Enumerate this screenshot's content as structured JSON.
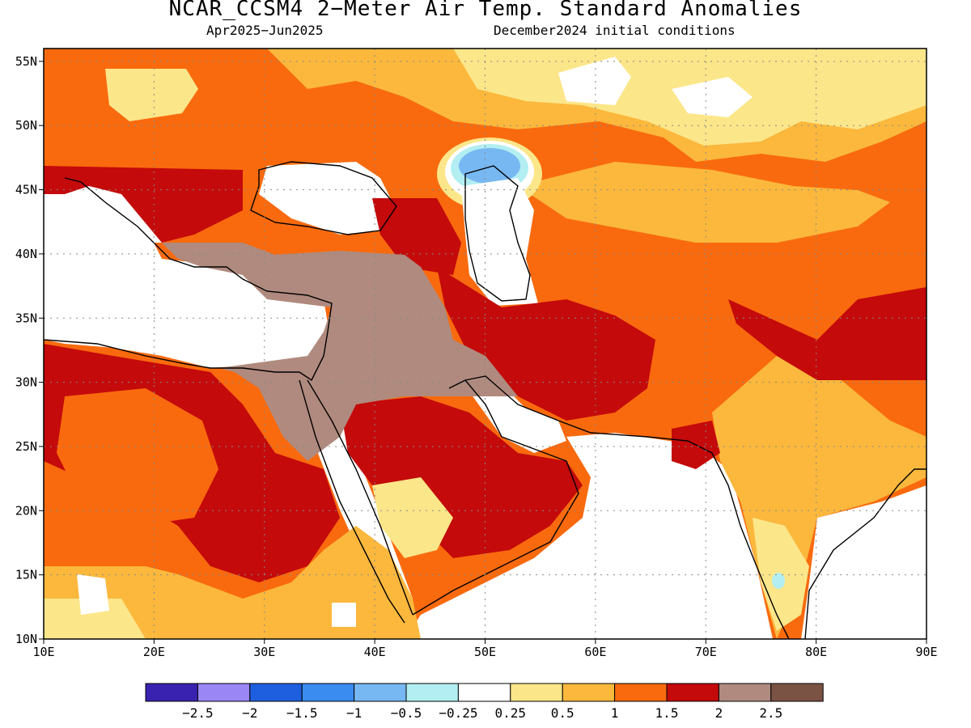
{
  "title": "NCAR_CCSM4 2−Meter Air Temp. Standard Anomalies",
  "subtitle_left": "Apr2025−Jun2025",
  "subtitle_right": "December2024 initial conditions",
  "map": {
    "lon_range": [
      10,
      90
    ],
    "lat_range": [
      10,
      56
    ],
    "x_ticks": [
      {
        "value": 10,
        "label": "10E"
      },
      {
        "value": 20,
        "label": "20E"
      },
      {
        "value": 30,
        "label": "30E"
      },
      {
        "value": 40,
        "label": "40E"
      },
      {
        "value": 50,
        "label": "50E"
      },
      {
        "value": 60,
        "label": "60E"
      },
      {
        "value": 70,
        "label": "70E"
      },
      {
        "value": 80,
        "label": "80E"
      },
      {
        "value": 90,
        "label": "90E"
      }
    ],
    "y_ticks": [
      {
        "value": 10,
        "label": "10N"
      },
      {
        "value": 15,
        "label": "15N"
      },
      {
        "value": 20,
        "label": "20N"
      },
      {
        "value": 25,
        "label": "25N"
      },
      {
        "value": 30,
        "label": "30N"
      },
      {
        "value": 35,
        "label": "35N"
      },
      {
        "value": 40,
        "label": "40N"
      },
      {
        "value": 45,
        "label": "45N"
      },
      {
        "value": 50,
        "label": "50N"
      },
      {
        "value": 55,
        "label": "55N"
      }
    ],
    "grid": true
  },
  "colorbar": {
    "colors": [
      "#3a22b0",
      "#9a86f5",
      "#1e5fe0",
      "#3b8cf0",
      "#78b8f2",
      "#b2eef2",
      "#ffffff",
      "#fce68a",
      "#fbb83d",
      "#f96a0e",
      "#c40a0a",
      "#b08a7e",
      "#7a5344"
    ],
    "labels": [
      "−2.5",
      "−2",
      "−1.5",
      "−1",
      "−0.5",
      "−0.25",
      "0.25",
      "0.5",
      "1",
      "1.5",
      "2",
      "2.5"
    ]
  }
}
